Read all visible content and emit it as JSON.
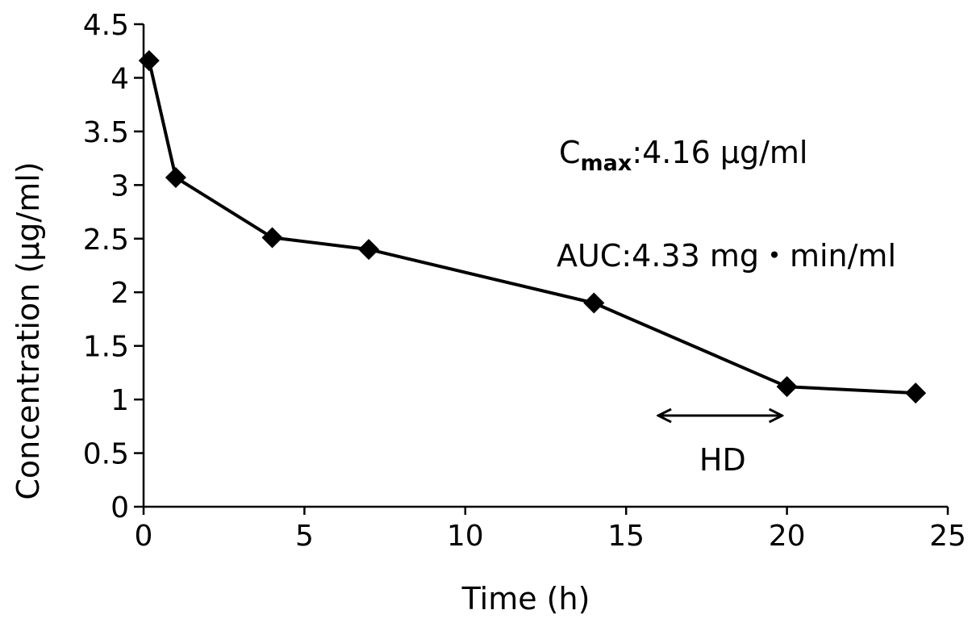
{
  "chart_data": {
    "type": "line",
    "xlabel": "Time (h)",
    "ylabel": "Concentration (µg/ml)",
    "xlim": [
      0,
      25
    ],
    "ylim": [
      0,
      4.5
    ],
    "x_ticks": [
      0,
      5,
      10,
      15,
      20,
      25
    ],
    "y_ticks": [
      0,
      0.5,
      1,
      1.5,
      2,
      2.5,
      3,
      3.5,
      4,
      4.5
    ],
    "x_tick_labels": [
      "0",
      "5",
      "10",
      "15",
      "20",
      "25"
    ],
    "y_tick_labels": [
      "0",
      "0.5",
      "1",
      "1.5",
      "2",
      "2.5",
      "3",
      "3.5",
      "4",
      "4.5"
    ],
    "grid": false,
    "series": [
      {
        "marker": "diamond",
        "color": "#000000",
        "x": [
          0.17,
          1,
          4,
          7,
          14,
          20,
          24
        ],
        "y": [
          4.16,
          3.07,
          2.51,
          2.4,
          1.9,
          1.12,
          1.06
        ]
      }
    ],
    "annotations": {
      "cmax_prefix": "C",
      "cmax_sub": "max",
      "cmax_value": ":4.16 µg/ml",
      "auc": "AUC:4.33 mg・min/ml",
      "hd_label": "HD",
      "hd_range": [
        16,
        20
      ]
    }
  }
}
